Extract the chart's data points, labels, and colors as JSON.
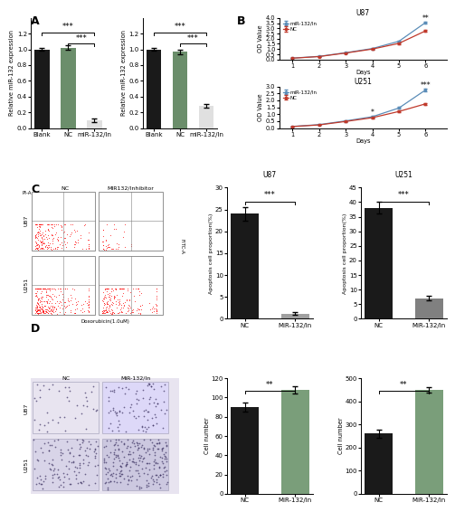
{
  "panel_A_left": {
    "categories": [
      "Blank",
      "NC",
      "miR-132/In"
    ],
    "values": [
      1.0,
      1.02,
      0.1
    ],
    "errors": [
      0.02,
      0.03,
      0.02
    ],
    "colors": [
      "#1a1a1a",
      "#6b8e6b",
      "#e0e0e0"
    ],
    "ylabel": "Relative miR-132 expression",
    "ylim": [
      0,
      1.4
    ],
    "yticks": [
      0,
      0.2,
      0.4,
      0.6,
      0.8,
      1.0,
      1.2
    ]
  },
  "panel_A_right": {
    "categories": [
      "Blank",
      "NC",
      "miR-132/In"
    ],
    "values": [
      1.0,
      0.97,
      0.28
    ],
    "errors": [
      0.02,
      0.03,
      0.02
    ],
    "colors": [
      "#1a1a1a",
      "#6b8e6b",
      "#e0e0e0"
    ],
    "ylabel": "Relative miR-132 expression",
    "ylim": [
      0,
      1.4
    ],
    "yticks": [
      0,
      0.2,
      0.4,
      0.6,
      0.8,
      1.0,
      1.2
    ]
  },
  "panel_B_top": {
    "title": "U87",
    "days": [
      1,
      2,
      3,
      4,
      5,
      6
    ],
    "mir132_values": [
      0.13,
      0.3,
      0.65,
      1.05,
      1.75,
      3.55
    ],
    "nc_values": [
      0.12,
      0.28,
      0.62,
      1.0,
      1.55,
      2.75
    ],
    "mir132_errors": [
      0.01,
      0.02,
      0.04,
      0.05,
      0.08,
      0.12
    ],
    "nc_errors": [
      0.01,
      0.02,
      0.04,
      0.05,
      0.08,
      0.1
    ],
    "ylabel": "OD Value",
    "ylim": [
      0,
      4
    ],
    "yticks": [
      0,
      0.5,
      1.0,
      1.5,
      2.0,
      2.5,
      3.0,
      3.5,
      4.0
    ],
    "mir132_color": "#5b8db8",
    "nc_color": "#c0392b",
    "sig_day5": "*",
    "sig_day6": "**"
  },
  "panel_B_bottom": {
    "title": "U251",
    "days": [
      1,
      2,
      3,
      4,
      5,
      6
    ],
    "mir132_values": [
      0.12,
      0.25,
      0.52,
      0.82,
      1.45,
      2.75
    ],
    "nc_values": [
      0.11,
      0.23,
      0.48,
      0.75,
      1.2,
      1.75
    ],
    "mir132_errors": [
      0.01,
      0.02,
      0.03,
      0.04,
      0.07,
      0.1
    ],
    "nc_errors": [
      0.01,
      0.02,
      0.03,
      0.04,
      0.06,
      0.08
    ],
    "ylabel": "OD Value",
    "ylim": [
      0,
      3
    ],
    "yticks": [
      0,
      0.5,
      1.0,
      1.5,
      2.0,
      2.5,
      3.0
    ],
    "mir132_color": "#5b8db8",
    "nc_color": "#c0392b",
    "sig_day4": "*",
    "sig_day6": "***"
  },
  "panel_C_u87": {
    "title": "U87",
    "categories": [
      "NC",
      "MiR-132/In"
    ],
    "values": [
      24.0,
      1.2
    ],
    "errors": [
      1.5,
      0.3
    ],
    "colors": [
      "#1a1a1a",
      "#a0a0a0"
    ],
    "ylabel": "Apoptosis cell proportion(%)",
    "ylim": [
      0,
      30
    ],
    "yticks": [
      0,
      5,
      10,
      15,
      20,
      25,
      30
    ],
    "sig": "***"
  },
  "panel_C_u251": {
    "title": "U251",
    "categories": [
      "NC",
      "MiR-132/In"
    ],
    "values": [
      38.0,
      7.0
    ],
    "errors": [
      2.0,
      0.8
    ],
    "colors": [
      "#1a1a1a",
      "#808080"
    ],
    "ylabel": "Apoptosis cell proportion(%)",
    "ylim": [
      0,
      45
    ],
    "yticks": [
      0,
      5,
      10,
      15,
      20,
      25,
      30,
      35,
      40,
      45
    ],
    "sig": "***"
  },
  "panel_D_u87": {
    "categories": [
      "NC",
      "MiR-132/In"
    ],
    "values": [
      90,
      108
    ],
    "errors": [
      5,
      4
    ],
    "colors": [
      "#1a1a1a",
      "#7a9e7a"
    ],
    "ylabel": "Cell number",
    "ylim": [
      0,
      120
    ],
    "yticks": [
      0,
      20,
      40,
      60,
      80,
      100,
      120
    ],
    "sig": "**"
  },
  "panel_D_u251": {
    "categories": [
      "NC",
      "MiR-132/In"
    ],
    "values": [
      260,
      450
    ],
    "errors": [
      18,
      12
    ],
    "colors": [
      "#1a1a1a",
      "#7a9e7a"
    ],
    "ylabel": "Cell number",
    "ylim": [
      0,
      500
    ],
    "yticks": [
      0,
      100,
      200,
      300,
      400,
      500
    ],
    "sig": "**"
  },
  "bg_color": "#ffffff"
}
